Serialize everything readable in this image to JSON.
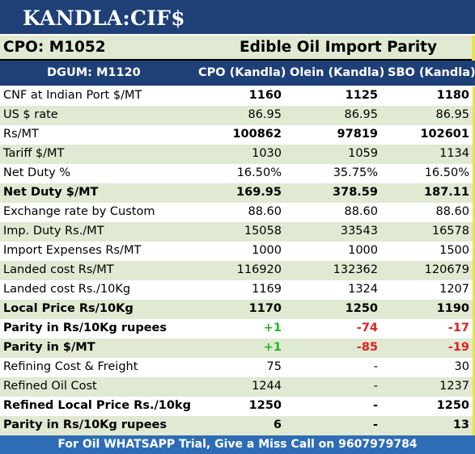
{
  "title": "KANDLA:CIF$",
  "subheader": {
    "left": "CPO: M1052",
    "right": "Edible Oil Import Parity"
  },
  "columns": [
    "DGUM: M1120",
    "CPO (Kandla)",
    "Olein (Kandla)",
    "SBO (Kandla)"
  ],
  "rows": [
    {
      "label": "CNF at Indian Port $/MT",
      "values": [
        "1160",
        "1125",
        "1180"
      ],
      "bold_values": true
    },
    {
      "label": "US $ rate",
      "values": [
        "86.95",
        "86.95",
        "86.95"
      ]
    },
    {
      "label": "Rs/MT",
      "values": [
        "100862",
        "97819",
        "102601"
      ],
      "bold_values": true
    },
    {
      "label": "Tariff $/MT",
      "values": [
        "1030",
        "1059",
        "1134"
      ]
    },
    {
      "label": "Net Duty %",
      "values": [
        "16.50%",
        "35.75%",
        "16.50%"
      ]
    },
    {
      "label": "Net Duty $/MT",
      "values": [
        "169.95",
        "378.59",
        "187.11"
      ],
      "bold_row": true
    },
    {
      "label": "Exchange rate by Custom",
      "values": [
        "88.60",
        "88.60",
        "88.60"
      ]
    },
    {
      "label": "Imp. Duty Rs./MT",
      "values": [
        "15058",
        "33543",
        "16578"
      ]
    },
    {
      "label": "Import Expenses Rs/MT",
      "values": [
        "1000",
        "1000",
        "1500"
      ]
    },
    {
      "label": "Landed cost Rs/MT",
      "values": [
        "116920",
        "132362",
        "120679"
      ]
    },
    {
      "label": "Landed cost Rs./10Kg",
      "values": [
        "1169",
        "1324",
        "1207"
      ]
    },
    {
      "label": "Local Price Rs/10Kg",
      "values": [
        "1170",
        "1250",
        "1190"
      ],
      "bold_row": true
    },
    {
      "label": "Parity in Rs/10Kg rupees",
      "values": [
        "+1",
        "-74",
        "-17"
      ],
      "bold_row": true,
      "colors": [
        "green",
        "red",
        "red"
      ]
    },
    {
      "label": "Parity in $/MT",
      "values": [
        "+1",
        "-85",
        "-19"
      ],
      "bold_row": true,
      "colors": [
        "green",
        "red",
        "red"
      ]
    },
    {
      "label": "Refining Cost & Freight",
      "values": [
        "75",
        "-",
        "30"
      ]
    },
    {
      "label": "Refined Oil Cost",
      "values": [
        "1244",
        "-",
        "1237"
      ]
    },
    {
      "label": "Refined Local Price Rs./10kg",
      "values": [
        "1250",
        "-",
        "1250"
      ],
      "bold_row": true
    },
    {
      "label": "Parity in Rs/10Kg rupees",
      "values": [
        "6",
        "-",
        "13"
      ],
      "bold_row": true
    }
  ],
  "footer": "For Oil WHATSAPP Trial, Give a Miss Call on 9607979784",
  "colors": {
    "navy": "#1f3f77",
    "band": "#e0e9d2",
    "green": "#1fb81f",
    "red": "#e02020",
    "footer": "#2e6db5",
    "tick": "#e8e24a"
  }
}
